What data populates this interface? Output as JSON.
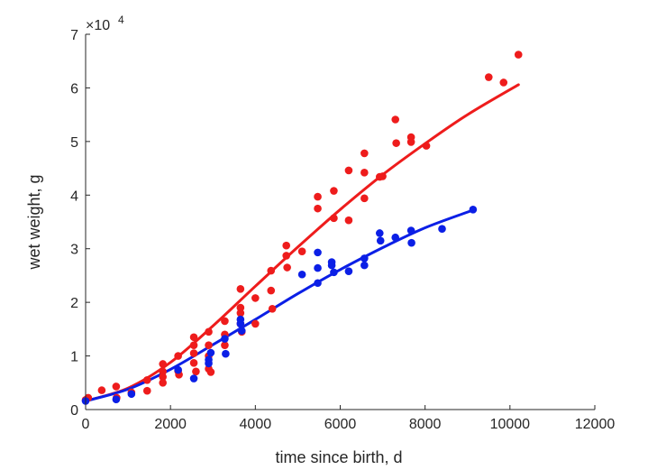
{
  "chart_data": {
    "type": "scatter",
    "xlabel": "time since birth, d",
    "ylabel": "wet weight, g",
    "y_exponent_label": "×10",
    "y_exponent_power": "4",
    "y_scale_factor": 10000,
    "xlim": [
      0,
      12000
    ],
    "ylim": [
      0,
      70000
    ],
    "x_ticks": [
      0,
      2000,
      4000,
      6000,
      8000,
      10000,
      12000
    ],
    "x_tick_labels": [
      "0",
      "2000",
      "4000",
      "6000",
      "8000",
      "10000",
      "12000"
    ],
    "y_ticks": [
      0,
      10000,
      20000,
      30000,
      40000,
      50000,
      60000,
      70000
    ],
    "y_tick_labels": [
      "0",
      "1",
      "2",
      "3",
      "4",
      "5",
      "6",
      "7"
    ],
    "grid": false,
    "colors": {
      "red": "#ee1c1c",
      "blue": "#0b1fe6",
      "axis": "#262626"
    },
    "series": [
      {
        "color": "#ee1c1c",
        "points": [
          [
            0,
            1800
          ],
          [
            60,
            2200
          ],
          [
            380,
            3600
          ],
          [
            720,
            4300
          ],
          [
            730,
            2200
          ],
          [
            1080,
            3200
          ],
          [
            1450,
            5500
          ],
          [
            1450,
            3500
          ],
          [
            1820,
            8500
          ],
          [
            1820,
            7100
          ],
          [
            1820,
            6100
          ],
          [
            1820,
            5000
          ],
          [
            2180,
            10000
          ],
          [
            2180,
            7200
          ],
          [
            2200,
            6500
          ],
          [
            2550,
            13500
          ],
          [
            2550,
            12000
          ],
          [
            2550,
            10500
          ],
          [
            2550,
            8700
          ],
          [
            2600,
            7100
          ],
          [
            2900,
            14500
          ],
          [
            2900,
            12000
          ],
          [
            2900,
            10000
          ],
          [
            2900,
            7600
          ],
          [
            2950,
            7000
          ],
          [
            3280,
            16500
          ],
          [
            3280,
            14000
          ],
          [
            3280,
            12000
          ],
          [
            3650,
            22500
          ],
          [
            3650,
            19000
          ],
          [
            3650,
            18000
          ],
          [
            3650,
            16000
          ],
          [
            3680,
            14500
          ],
          [
            4000,
            20800
          ],
          [
            4000,
            16000
          ],
          [
            4370,
            25900
          ],
          [
            4370,
            22200
          ],
          [
            4400,
            18800
          ],
          [
            4730,
            30600
          ],
          [
            4730,
            28700
          ],
          [
            4750,
            26500
          ],
          [
            5100,
            29500
          ],
          [
            5470,
            39700
          ],
          [
            5470,
            37500
          ],
          [
            5850,
            40800
          ],
          [
            5850,
            35700
          ],
          [
            6200,
            44600
          ],
          [
            6200,
            35300
          ],
          [
            6570,
            47800
          ],
          [
            6570,
            44200
          ],
          [
            6570,
            39400
          ],
          [
            6930,
            43400
          ],
          [
            7000,
            43500
          ],
          [
            7300,
            54100
          ],
          [
            7320,
            49700
          ],
          [
            7670,
            50800
          ],
          [
            7670,
            49900
          ],
          [
            8030,
            49200
          ],
          [
            9500,
            62000
          ],
          [
            9850,
            61000
          ],
          [
            10200,
            66200
          ]
        ],
        "fit": [
          [
            0,
            1600
          ],
          [
            1000,
            4000
          ],
          [
            2000,
            8800
          ],
          [
            3000,
            15600
          ],
          [
            4000,
            23000
          ],
          [
            5000,
            30300
          ],
          [
            6000,
            37300
          ],
          [
            7000,
            43800
          ],
          [
            8000,
            49600
          ],
          [
            9000,
            55000
          ],
          [
            10200,
            60600
          ]
        ]
      },
      {
        "color": "#0b1fe6",
        "points": [
          [
            0,
            1600
          ],
          [
            720,
            1900
          ],
          [
            1080,
            2900
          ],
          [
            2180,
            7400
          ],
          [
            2550,
            5800
          ],
          [
            2900,
            9300
          ],
          [
            2900,
            8600
          ],
          [
            2950,
            10600
          ],
          [
            3280,
            13200
          ],
          [
            3300,
            10400
          ],
          [
            3650,
            16800
          ],
          [
            3650,
            16000
          ],
          [
            3680,
            14700
          ],
          [
            5100,
            25200
          ],
          [
            5470,
            29300
          ],
          [
            5470,
            26400
          ],
          [
            5470,
            23600
          ],
          [
            5800,
            27500
          ],
          [
            5800,
            26900
          ],
          [
            5850,
            25600
          ],
          [
            6200,
            25800
          ],
          [
            6570,
            28200
          ],
          [
            6570,
            26900
          ],
          [
            6930,
            32900
          ],
          [
            6950,
            31500
          ],
          [
            7300,
            32100
          ],
          [
            7670,
            33400
          ],
          [
            7680,
            31100
          ],
          [
            8400,
            33700
          ],
          [
            9130,
            37300
          ]
        ],
        "fit": [
          [
            0,
            1600
          ],
          [
            1000,
            3800
          ],
          [
            2000,
            7500
          ],
          [
            3000,
            12100
          ],
          [
            4000,
            16800
          ],
          [
            5000,
            21600
          ],
          [
            6000,
            26100
          ],
          [
            7000,
            30200
          ],
          [
            8000,
            33900
          ],
          [
            9130,
            37200
          ]
        ]
      }
    ]
  }
}
